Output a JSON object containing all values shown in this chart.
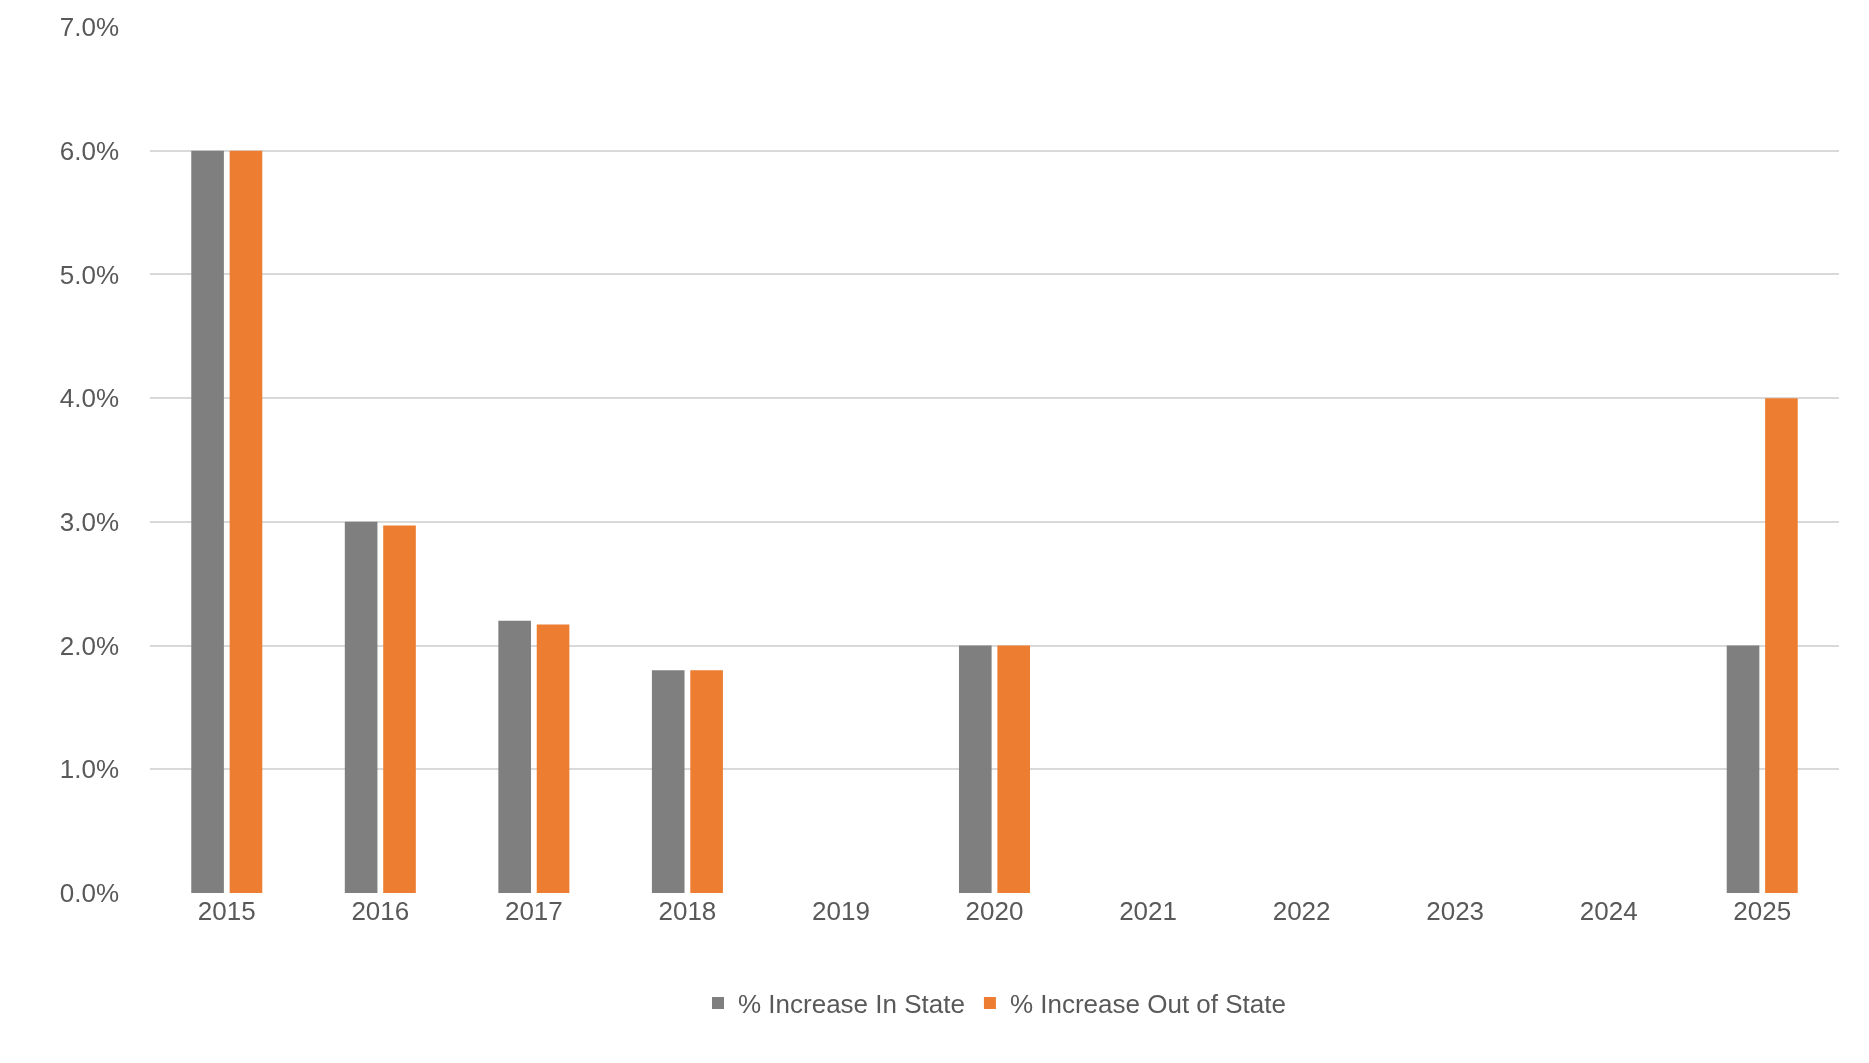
{
  "chart_data": {
    "type": "bar",
    "categories": [
      "2015",
      "2016",
      "2017",
      "2018",
      "2019",
      "2020",
      "2021",
      "2022",
      "2023",
      "2024",
      "2025"
    ],
    "series": [
      {
        "name": "% Increase In State",
        "color": "#7f7f7f",
        "values": [
          6.0,
          3.0,
          2.2,
          1.8,
          null,
          2.0,
          null,
          null,
          null,
          null,
          2.0
        ]
      },
      {
        "name": "% Increase Out of State",
        "color": "#ed7d31",
        "values": [
          6.0,
          2.97,
          2.17,
          1.8,
          null,
          2.0,
          null,
          null,
          null,
          null,
          4.0
        ]
      }
    ],
    "ylim": [
      0,
      7
    ],
    "yticks": [
      {
        "value": 0,
        "label": "0.0%"
      },
      {
        "value": 1,
        "label": "1.0%"
      },
      {
        "value": 2,
        "label": "2.0%"
      },
      {
        "value": 3,
        "label": "3.0%"
      },
      {
        "value": 4,
        "label": "4.0%"
      },
      {
        "value": 5,
        "label": "5.0%"
      },
      {
        "value": 6,
        "label": "6.0%"
      },
      {
        "value": 7,
        "label": "7.0%"
      }
    ],
    "grid": "y",
    "legend": "bottom"
  }
}
